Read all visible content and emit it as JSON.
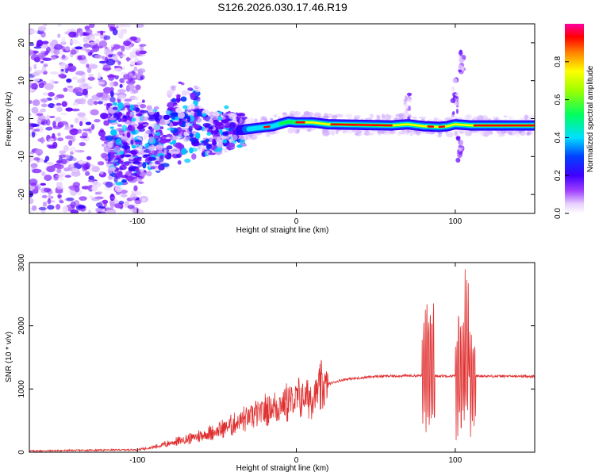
{
  "title": "S126.2026.030.17.46.R19",
  "chart_data": [
    {
      "type": "heatmap",
      "name": "spectrogram",
      "xlabel": "Height of straight line (km)",
      "ylabel": "Frequency (Hz)",
      "xlim": [
        -168,
        150
      ],
      "ylim": [
        -25,
        25
      ],
      "xticks": [
        -100,
        0,
        100
      ],
      "yticks": [
        -20,
        -10,
        0,
        10,
        20
      ],
      "colorbar": {
        "label": "Normalized spectral amplitude",
        "range": [
          0,
          1
        ],
        "ticks": [
          "0.0",
          "0.2",
          "0.4",
          "0.6",
          "0.8"
        ],
        "tick_values": [
          0,
          0.2,
          0.4,
          0.6,
          0.8
        ]
      },
      "ridge": {
        "description": "dominant frequency trace",
        "points": [
          [
            -35,
            -3
          ],
          [
            -25,
            -2.5
          ],
          [
            -15,
            -2
          ],
          [
            -5,
            -0.8
          ],
          [
            0,
            -1
          ],
          [
            10,
            -1
          ],
          [
            20,
            -1.5
          ],
          [
            60,
            -1.8
          ],
          [
            70,
            -1.5
          ],
          [
            80,
            -2
          ],
          [
            90,
            -2.2
          ],
          [
            95,
            -2
          ],
          [
            100,
            -1.5
          ],
          [
            110,
            -1.8
          ],
          [
            150,
            -1.8
          ]
        ]
      },
      "colors": [
        "#ffffff",
        "#e8d0ff",
        "#a040ff",
        "#6000ff",
        "#0000ff",
        "#00e0ff",
        "#00ff40",
        "#ffff00",
        "#ff0000",
        "#ff00a0"
      ]
    },
    {
      "type": "line",
      "name": "snr",
      "xlabel": "Height of straight line (km)",
      "ylabel": "SNR (10 * v/v)",
      "xlim": [
        -168,
        150
      ],
      "ylim": [
        0,
        3000
      ],
      "xticks": [
        -100,
        0,
        100
      ],
      "yticks": [
        0,
        1000,
        2000,
        3000
      ],
      "series": [
        {
          "name": "SNR",
          "color": "#e03030",
          "envelope": [
            [
              -168,
              20
            ],
            [
              -100,
              40
            ],
            [
              -90,
              80
            ],
            [
              -70,
              200
            ],
            [
              -50,
              330
            ],
            [
              -30,
              550
            ],
            [
              -10,
              760
            ],
            [
              10,
              900
            ],
            [
              20,
              1080
            ],
            [
              30,
              1150
            ],
            [
              50,
              1200
            ],
            [
              70,
              1210
            ],
            [
              150,
              1200
            ]
          ],
          "bursts": [
            {
              "center": 83,
              "width": 8,
              "min": 150,
              "max": 2500
            },
            {
              "center": 103,
              "width": 6,
              "min": 150,
              "max": 2400
            },
            {
              "center": 107,
              "width": 3,
              "min": 200,
              "max": 3000
            },
            {
              "center": 111,
              "width": 4,
              "min": 200,
              "max": 2050
            }
          ]
        }
      ]
    }
  ]
}
